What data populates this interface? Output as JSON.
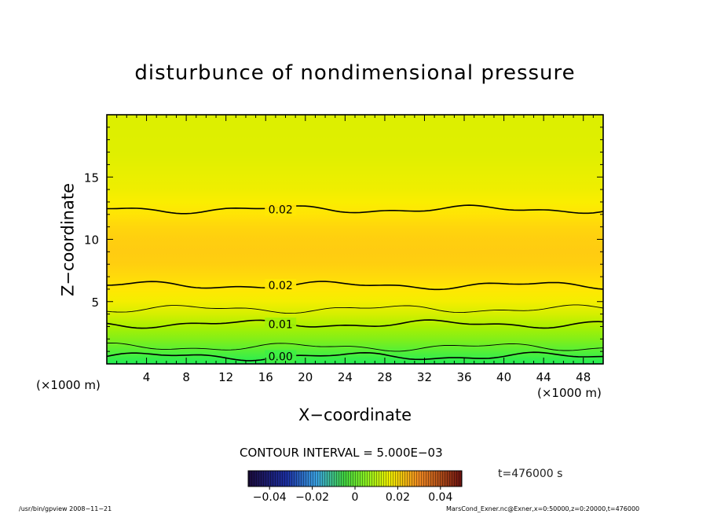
{
  "chart_data": {
    "type": "heatmap",
    "title": "disturbunce of nondimensional pressure",
    "xlabel": "X−coordinate",
    "ylabel": "Z−coordinate",
    "x_unit_left": "(×1000 m)",
    "x_unit_right": "(×1000 m)",
    "xlim": [
      0,
      50
    ],
    "ylim": [
      0,
      20
    ],
    "xticks": [
      4,
      8,
      12,
      16,
      20,
      24,
      28,
      32,
      36,
      40,
      44,
      48
    ],
    "yticks": [
      5,
      10,
      15
    ],
    "contour_interval_label": "CONTOUR INTERVAL = 5.000E−03",
    "time_label": "t=476000 s",
    "colorbar_ticks": [
      "−0.04",
      "−0.02",
      "0",
      "0.02",
      "0.04"
    ],
    "colorbar_values": [
      -0.04,
      -0.02,
      0,
      0.02,
      0.04
    ],
    "colorbar_range": [
      -0.05,
      0.05
    ],
    "value_profile": {
      "z": [
        0,
        1,
        2,
        3,
        4,
        5,
        6,
        7,
        8,
        9,
        10,
        11,
        12,
        13,
        14,
        15,
        16,
        17,
        18,
        19,
        20
      ],
      "value": [
        -0.002,
        0.003,
        0.008,
        0.012,
        0.016,
        0.019,
        0.021,
        0.023,
        0.0245,
        0.025,
        0.0245,
        0.0235,
        0.0215,
        0.0195,
        0.0185,
        0.018,
        0.0175,
        0.017,
        0.017,
        0.0168,
        0.0168
      ]
    },
    "contours": [
      {
        "level": 0.0,
        "label": "0.00",
        "z": 0.6
      },
      {
        "level": 0.005,
        "label": "",
        "z": 1.35
      },
      {
        "level": 0.01,
        "label": "0.01",
        "z": 3.2
      },
      {
        "level": 0.015,
        "label": "",
        "z": 4.4
      },
      {
        "level": 0.02,
        "label": "0.02",
        "z": 6.3
      },
      {
        "level": 0.02,
        "label": "0.02",
        "z": 12.4
      }
    ],
    "colors": {
      "low": "#22ee55",
      "mid": "#ffee00",
      "high": "#ffcc11",
      "top": "#eeff00",
      "contour": "#000000",
      "frame": "#000000"
    }
  },
  "footer": {
    "left": "/usr/bin/gpview   2008−11−21",
    "right": "MarsCond_Exner.nc@Exner,x=0:50000,z=0:20000,t=476000"
  }
}
